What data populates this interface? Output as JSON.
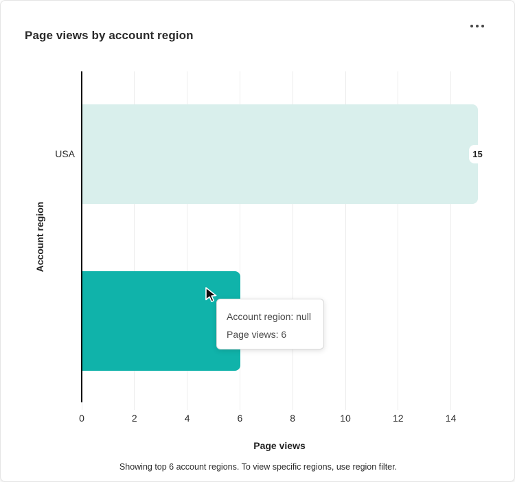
{
  "card": {
    "title": "Page views by account region"
  },
  "chart_data": {
    "type": "bar",
    "orientation": "horizontal",
    "title": "Page views by account region",
    "xlabel": "Page views",
    "ylabel": "Account region",
    "xlim": [
      0,
      15
    ],
    "x_ticks": [
      0,
      2,
      4,
      6,
      8,
      10,
      12,
      14
    ],
    "grid": true,
    "legend": "none",
    "bars": [
      {
        "category": "USA",
        "axis_label": "USA",
        "value": 15,
        "value_label": "15",
        "color": "#D9EFEC"
      },
      {
        "category": "null",
        "axis_label": "",
        "value": 6,
        "value_label": "",
        "color": "#10B3AA"
      }
    ]
  },
  "tooltip": {
    "lines": [
      "Account region: null",
      "Page views: 6"
    ]
  },
  "footer_note": "Showing top 6 account regions. To view specific regions, use region filter."
}
